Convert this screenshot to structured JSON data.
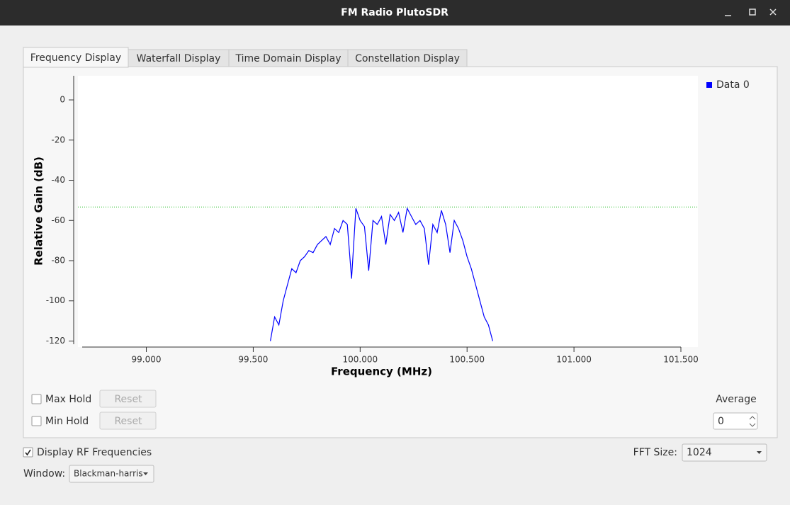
{
  "window": {
    "title": "FM Radio PlutoSDR"
  },
  "tabs": [
    "Frequency Display",
    "Waterfall Display",
    "Time Domain Display",
    "Constellation Display"
  ],
  "active_tab": 0,
  "chart_data": {
    "type": "line",
    "xlabel": "Frequency (MHz)",
    "ylabel": "Relative Gain (dB)",
    "xlim": [
      98.7,
      101.5
    ],
    "ylim": [
      -123,
      12
    ],
    "xticks": [
      {
        "value": 99,
        "label": "99.000"
      },
      {
        "value": 99.5,
        "label": "99.500"
      },
      {
        "value": 100,
        "label": "100.000"
      },
      {
        "value": 100.5,
        "label": "100.500"
      },
      {
        "value": 101,
        "label": "101.000"
      },
      {
        "value": 101.5,
        "label": "101.500"
      }
    ],
    "yticks": [
      0,
      -20,
      -40,
      -60,
      -80,
      -100,
      -120
    ],
    "reference_line": -53.3,
    "reference_color": "#22bb22",
    "x": [
      99.58,
      99.6,
      99.62,
      99.64,
      99.66,
      99.68,
      99.7,
      99.72,
      99.74,
      99.76,
      99.78,
      99.8,
      99.82,
      99.84,
      99.86,
      99.88,
      99.9,
      99.92,
      99.94,
      99.96,
      99.98,
      100.0,
      100.02,
      100.04,
      100.06,
      100.08,
      100.1,
      100.12,
      100.14,
      100.16,
      100.18,
      100.2,
      100.22,
      100.24,
      100.26,
      100.28,
      100.3,
      100.32,
      100.34,
      100.36,
      100.38,
      100.4,
      100.42,
      100.44,
      100.46,
      100.48,
      100.5,
      100.52,
      100.54,
      100.56,
      100.58,
      100.6,
      100.62
    ],
    "series": [
      {
        "name": "Data 0",
        "color": "#0000ff",
        "values": [
          -120,
          -108,
          -112,
          -100,
          -92,
          -84,
          -86,
          -80,
          -78,
          -75,
          -76,
          -72,
          -70,
          -68,
          -72,
          -64,
          -66,
          -60,
          -62,
          -89,
          -54,
          -60,
          -63,
          -85,
          -60,
          -62,
          -58,
          -72,
          -57,
          -60,
          -56,
          -66,
          -54,
          -58,
          -62,
          -60,
          -64,
          -82,
          -62,
          -66,
          -55,
          -62,
          -76,
          -60,
          -64,
          -70,
          -78,
          -84,
          -92,
          -100,
          -108,
          -112,
          -120
        ]
      }
    ]
  },
  "controls": {
    "max_hold": {
      "label": "Max Hold",
      "checked": false,
      "button": "Reset"
    },
    "min_hold": {
      "label": "Min Hold",
      "checked": false,
      "button": "Reset"
    },
    "average": {
      "label": "Average",
      "value": 0
    },
    "display_rf": {
      "label": "Display RF Frequencies",
      "checked": true
    },
    "fft_size": {
      "label": "FFT Size:",
      "value": "1024"
    },
    "window": {
      "label": "Window:",
      "value": "Blackman-harris"
    }
  }
}
